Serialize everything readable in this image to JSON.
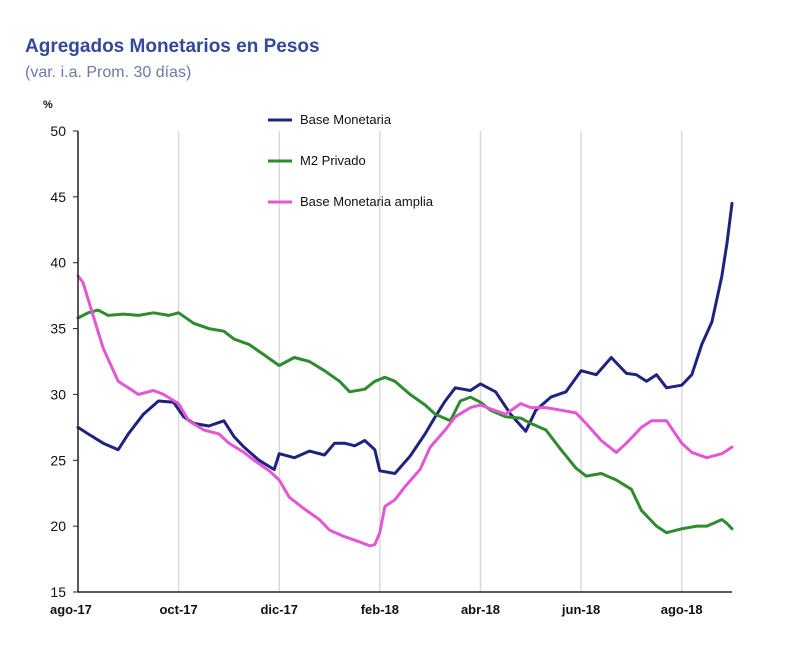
{
  "chart_data": {
    "type": "line",
    "title": "Agregados Monetarios en Pesos",
    "subtitle": "(var. i.a. Prom. 30 días)",
    "ylabel": "%",
    "xlabel": "",
    "ylim": [
      15,
      50
    ],
    "yticks": [
      "15",
      "20",
      "25",
      "30",
      "35",
      "40",
      "45",
      "50"
    ],
    "xlim": [
      0,
      13
    ],
    "x_tick_labels": [
      "ago-17",
      "oct-17",
      "dic-17",
      "feb-18",
      "abr-18",
      "jun-18",
      "ago-18"
    ],
    "grid": "vertical",
    "legend_position": "top-center",
    "series": [
      {
        "name": "Base Monetaria",
        "color": "#1f237e",
        "x": [
          0,
          0.2,
          0.5,
          0.8,
          1.0,
          1.3,
          1.6,
          1.9,
          2.1,
          2.3,
          2.6,
          2.9,
          3.1,
          3.3,
          3.6,
          3.9,
          4.0,
          4.3,
          4.6,
          4.9,
          5.1,
          5.3,
          5.5,
          5.7,
          5.9,
          6.0,
          6.3,
          6.6,
          6.9,
          7.1,
          7.3,
          7.5,
          7.8,
          8.0,
          8.3,
          8.6,
          8.9,
          9.1,
          9.4,
          9.7,
          10.0,
          10.3,
          10.6,
          10.9,
          11.1,
          11.3,
          11.5,
          11.7,
          12.0,
          12.2,
          12.4,
          12.6,
          12.8,
          12.9,
          13.0
        ],
        "values": [
          27.5,
          27.0,
          26.3,
          25.8,
          27.0,
          28.5,
          29.5,
          29.4,
          28.3,
          27.8,
          27.6,
          28.0,
          26.8,
          26.0,
          25.0,
          24.3,
          25.5,
          25.2,
          25.7,
          25.4,
          26.3,
          26.3,
          26.1,
          26.5,
          25.8,
          24.2,
          24.0,
          25.3,
          27.0,
          28.3,
          29.5,
          30.5,
          30.3,
          30.8,
          30.2,
          28.5,
          27.2,
          28.8,
          29.8,
          30.2,
          31.8,
          31.5,
          32.8,
          31.6,
          31.5,
          31.0,
          31.5,
          30.5,
          30.7,
          31.5,
          33.8,
          35.5,
          39.0,
          41.5,
          44.5
        ]
      },
      {
        "name": "M2 Privado",
        "color": "#2e8b2e",
        "x": [
          0,
          0.2,
          0.4,
          0.6,
          0.9,
          1.2,
          1.5,
          1.8,
          2.0,
          2.3,
          2.6,
          2.9,
          3.1,
          3.4,
          3.7,
          4.0,
          4.3,
          4.6,
          4.9,
          5.2,
          5.4,
          5.7,
          5.9,
          6.1,
          6.3,
          6.6,
          6.9,
          7.1,
          7.4,
          7.6,
          7.8,
          8.0,
          8.2,
          8.5,
          8.8,
          9.0,
          9.3,
          9.6,
          9.9,
          10.1,
          10.4,
          10.7,
          11.0,
          11.2,
          11.5,
          11.7,
          12.0,
          12.3,
          12.5,
          12.8,
          12.9,
          13.0
        ],
        "values": [
          35.8,
          36.2,
          36.4,
          36.0,
          36.1,
          36.0,
          36.2,
          36.0,
          36.2,
          35.4,
          35.0,
          34.8,
          34.2,
          33.8,
          33.0,
          32.2,
          32.8,
          32.5,
          31.8,
          31.0,
          30.2,
          30.4,
          31.0,
          31.3,
          31.0,
          30.0,
          29.2,
          28.5,
          28.0,
          29.5,
          29.8,
          29.4,
          28.8,
          28.3,
          28.2,
          27.8,
          27.3,
          25.8,
          24.4,
          23.8,
          24.0,
          23.5,
          22.8,
          21.2,
          20.0,
          19.5,
          19.8,
          20.0,
          20.0,
          20.5,
          20.2,
          19.8
        ]
      },
      {
        "name": "Base Monetaria amplia",
        "color": "#e457d3",
        "x": [
          0,
          0.1,
          0.3,
          0.5,
          0.8,
          1.0,
          1.2,
          1.5,
          1.7,
          2.0,
          2.2,
          2.5,
          2.8,
          3.0,
          3.3,
          3.5,
          3.8,
          4.0,
          4.2,
          4.5,
          4.8,
          5.0,
          5.3,
          5.6,
          5.8,
          5.9,
          6.0,
          6.1,
          6.3,
          6.5,
          6.8,
          7.0,
          7.3,
          7.5,
          7.8,
          8.0,
          8.2,
          8.5,
          8.8,
          9.0,
          9.3,
          9.6,
          9.9,
          10.1,
          10.4,
          10.7,
          10.9,
          11.2,
          11.4,
          11.7,
          12.0,
          12.2,
          12.5,
          12.8,
          13.0
        ],
        "values": [
          39.0,
          38.5,
          36.0,
          33.5,
          31.0,
          30.5,
          30.0,
          30.3,
          30.0,
          29.3,
          28.0,
          27.3,
          27.0,
          26.3,
          25.6,
          25.0,
          24.2,
          23.5,
          22.2,
          21.3,
          20.5,
          19.7,
          19.2,
          18.8,
          18.5,
          18.6,
          19.5,
          21.5,
          22.0,
          23.0,
          24.3,
          26.0,
          27.3,
          28.3,
          29.0,
          29.2,
          28.9,
          28.5,
          29.3,
          29.0,
          29.0,
          28.8,
          28.6,
          27.8,
          26.5,
          25.6,
          26.3,
          27.5,
          28.0,
          28.0,
          26.3,
          25.6,
          25.2,
          25.5,
          26.0
        ]
      }
    ]
  }
}
